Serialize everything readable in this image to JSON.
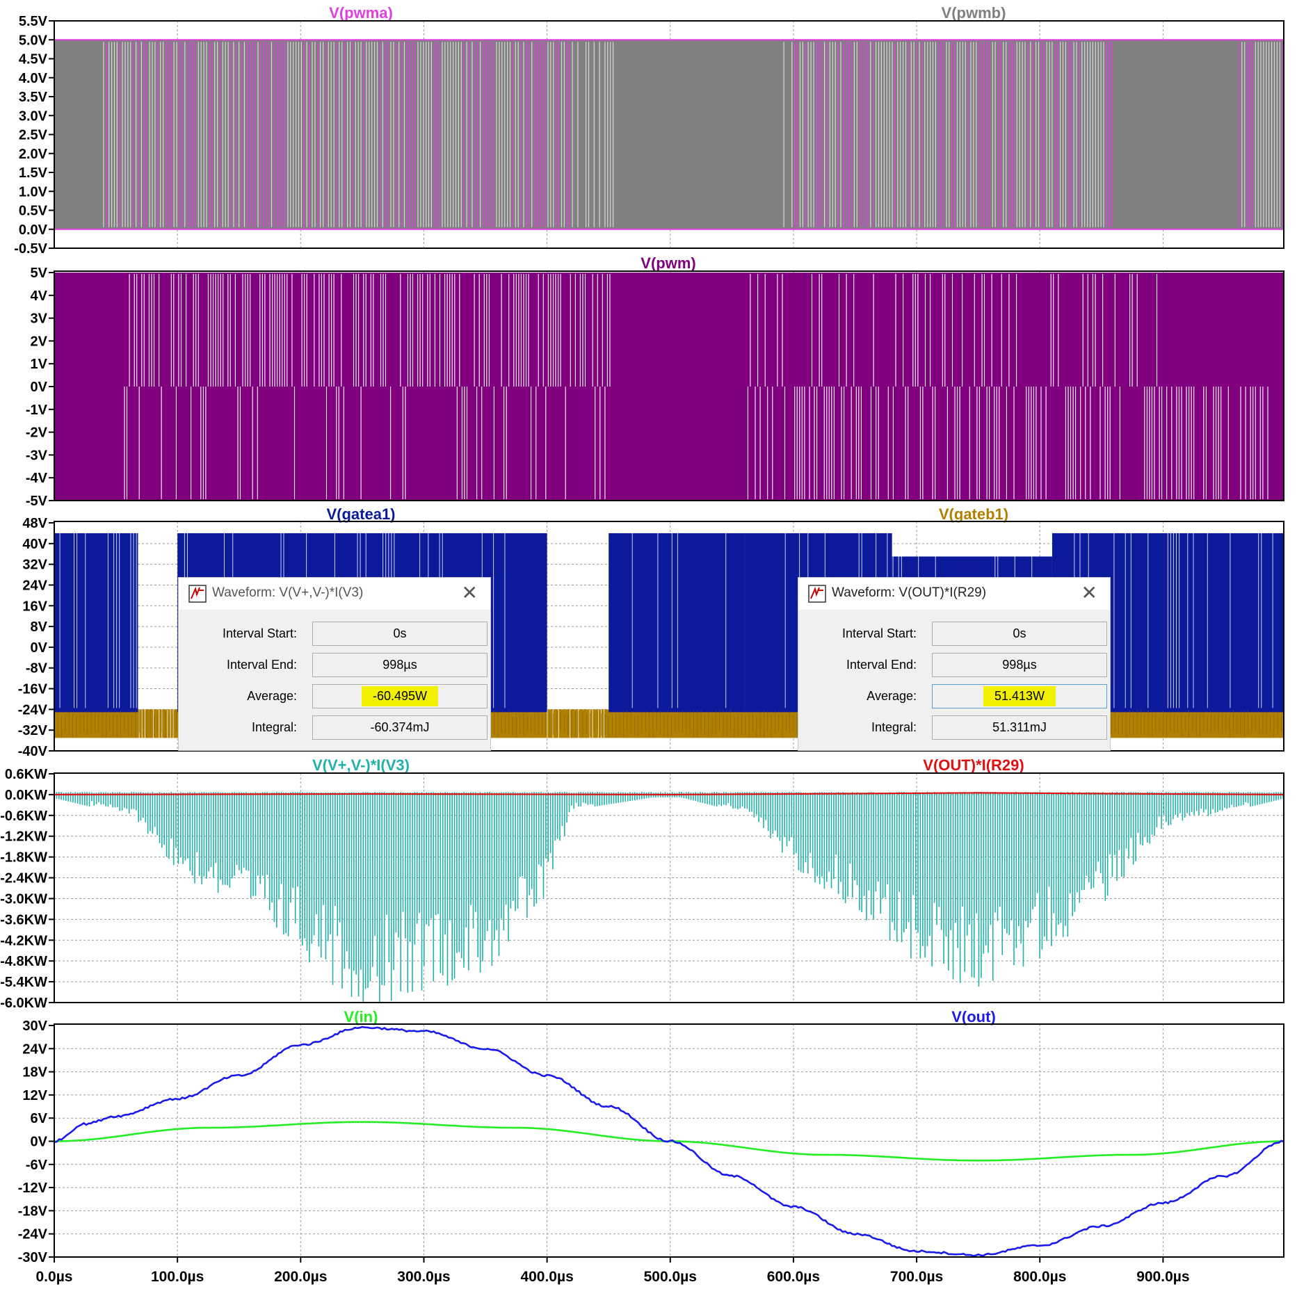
{
  "time_axis": {
    "ticks": [
      "0.0µs",
      "100.0µs",
      "200.0µs",
      "300.0µs",
      "400.0µs",
      "500.0µs",
      "600.0µs",
      "700.0µs",
      "800.0µs",
      "900.0µs"
    ],
    "tick_values_us": [
      0,
      100,
      200,
      300,
      400,
      500,
      600,
      700,
      800,
      900
    ],
    "range_us": [
      0,
      998
    ]
  },
  "colors": {
    "pwma": "#e040e0",
    "pwmb": "#808080",
    "pwm": "#800080",
    "gatea1": "#0a1a9a",
    "gateb1": "#b08000",
    "p_v3": "#20b2aa",
    "p_r29": "#e01010",
    "v_in": "#22ee22",
    "v_out": "#1a1aee",
    "highlight": "#f2f200"
  },
  "panes": [
    {
      "id": "pane1",
      "traces": [
        {
          "name": "V(pwma)",
          "color": "#e040e0"
        },
        {
          "name": "V(pwmb)",
          "color": "#808080"
        }
      ],
      "y_ticks": [
        "5.5V",
        "5.0V",
        "4.5V",
        "4.0V",
        "3.5V",
        "3.0V",
        "2.5V",
        "2.0V",
        "1.5V",
        "1.0V",
        "0.5V",
        "0.0V",
        "-0.5V"
      ],
      "y_range": [
        -0.5,
        5.5
      ]
    },
    {
      "id": "pane2",
      "traces": [
        {
          "name": "V(pwm)",
          "color": "#800080"
        }
      ],
      "y_ticks": [
        "5V",
        "4V",
        "3V",
        "2V",
        "1V",
        "0V",
        "-1V",
        "-2V",
        "-3V",
        "-4V",
        "-5V"
      ],
      "y_range": [
        -5,
        5
      ]
    },
    {
      "id": "pane3",
      "traces": [
        {
          "name": "V(gatea1)",
          "color": "#0a1a9a"
        },
        {
          "name": "V(gateb1)",
          "color": "#b08000"
        }
      ],
      "y_ticks": [
        "48V",
        "40V",
        "32V",
        "24V",
        "16V",
        "8V",
        "0V",
        "-8V",
        "-16V",
        "-24V",
        "-32V",
        "-40V"
      ],
      "y_range": [
        -40,
        48
      ]
    },
    {
      "id": "pane4",
      "traces": [
        {
          "name": "V(V+,V-)*I(V3)",
          "color": "#20b2aa"
        },
        {
          "name": "V(OUT)*I(R29)",
          "color": "#e01010"
        }
      ],
      "y_ticks": [
        "0.6KW",
        "0.0KW",
        "-0.6KW",
        "-1.2KW",
        "-1.8KW",
        "-2.4KW",
        "-3.0KW",
        "-3.6KW",
        "-4.2KW",
        "-4.8KW",
        "-5.4KW",
        "-6.0KW"
      ],
      "y_range": [
        -6.0,
        0.6
      ]
    },
    {
      "id": "pane5",
      "traces": [
        {
          "name": "V(in)",
          "color": "#22ee22"
        },
        {
          "name": "V(out)",
          "color": "#1a1aee"
        }
      ],
      "y_ticks": [
        "30V",
        "24V",
        "18V",
        "12V",
        "6V",
        "0V",
        "-6V",
        "-12V",
        "-18V",
        "-24V",
        "-30V"
      ],
      "y_range": [
        -30,
        30
      ]
    }
  ],
  "dialogs": [
    {
      "title": "Waveform: V(V+,V-)*I(V3)",
      "interval_start_label": "Interval Start:",
      "interval_start": "0s",
      "interval_end_label": "Interval End:",
      "interval_end": "998µs",
      "average_label": "Average:",
      "average": "-60.495W",
      "integral_label": "Integral:",
      "integral": "-60.374mJ"
    },
    {
      "title": "Waveform: V(OUT)*I(R29)",
      "interval_start_label": "Interval Start:",
      "interval_start": "0s",
      "interval_end_label": "Interval End:",
      "interval_end": "998µs",
      "average_label": "Average:",
      "average": "51.413W",
      "integral_label": "Integral:",
      "integral": "51.311mJ"
    }
  ],
  "chart_data": [
    {
      "type": "line",
      "title": "",
      "series": [
        {
          "name": "V(pwma)",
          "x_us": [
            0,
            998
          ],
          "description_values": [
            0,
            5
          ]
        },
        {
          "name": "V(pwmb)",
          "x_us": [
            0,
            998
          ],
          "description_values": [
            0,
            5
          ]
        }
      ],
      "ylim": [
        -0.5,
        5.5
      ],
      "xlim_us": [
        0,
        998
      ]
    },
    {
      "type": "line",
      "series": [
        {
          "name": "V(pwm)",
          "levels": [
            -5,
            0,
            5
          ]
        }
      ],
      "ylim": [
        -5,
        5
      ],
      "xlim_us": [
        0,
        998
      ]
    },
    {
      "type": "line",
      "series": [
        {
          "name": "V(gatea1)",
          "high": 44,
          "low": -24
        },
        {
          "name": "V(gateb1)",
          "high": -24,
          "low": -35
        }
      ],
      "ylim": [
        -40,
        48
      ],
      "xlim_us": [
        0,
        998
      ]
    },
    {
      "type": "line",
      "series": [
        {
          "name": "V(V+,V-)*I(V3)",
          "x_us": [
            0,
            65,
            100,
            150,
            200,
            250,
            300,
            350,
            400,
            420,
            500,
            560,
            600,
            650,
            700,
            750,
            800,
            850,
            900,
            1000
          ],
          "min_kw": [
            -0.05,
            -0.6,
            -2.2,
            -3.2,
            -4.4,
            -6.0,
            -5.4,
            -5.0,
            -3.0,
            -0.4,
            0.05,
            -0.5,
            -2.0,
            -3.2,
            -4.8,
            -5.4,
            -4.6,
            -3.1,
            -0.9,
            -0.05
          ]
        },
        {
          "name": "V(OUT)*I(R29)",
          "x_us": [
            0,
            250,
            500,
            750,
            998
          ],
          "values_kw": [
            0,
            0.02,
            0,
            0.05,
            0
          ]
        }
      ],
      "ylim": [
        -6.0,
        0.6
      ],
      "xlim_us": [
        0,
        998
      ]
    },
    {
      "type": "line",
      "series": [
        {
          "name": "V(in)",
          "x_us": [
            0,
            125,
            250,
            375,
            500,
            625,
            750,
            875,
            998
          ],
          "values": [
            0,
            3.5,
            5,
            3.5,
            0,
            -3.5,
            -5,
            -3.5,
            0
          ]
        },
        {
          "name": "V(out)",
          "x_us": [
            0,
            25,
            50,
            100,
            150,
            200,
            250,
            300,
            350,
            400,
            450,
            500,
            550,
            600,
            650,
            700,
            750,
            800,
            850,
            900,
            950,
            998
          ],
          "values": [
            0,
            4.5,
            6.5,
            11,
            17,
            25,
            29.5,
            28.5,
            24,
            17,
            9,
            0,
            -9,
            -17,
            -24,
            -28.5,
            -29.5,
            -27,
            -22,
            -16,
            -9,
            0
          ]
        }
      ],
      "ylim": [
        -30,
        30
      ],
      "xlim_us": [
        0,
        998
      ]
    }
  ]
}
